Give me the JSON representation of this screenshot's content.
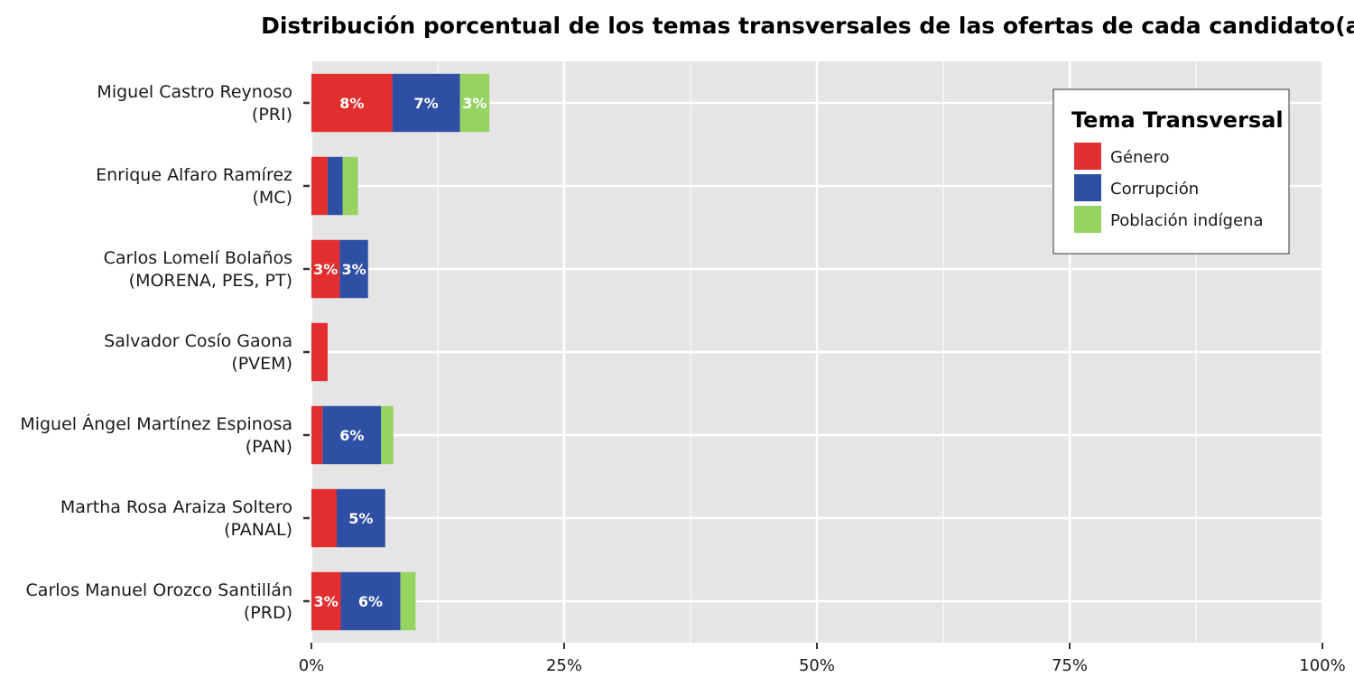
{
  "chart_data": {
    "type": "bar",
    "orientation": "horizontal",
    "stacked": true,
    "title": "Distribución porcentual de los temas transversales de las ofertas de cada candidato(a)",
    "xlabel": "",
    "ylabel": "",
    "xlim": [
      0,
      100
    ],
    "x_ticks": [
      0,
      25,
      50,
      75,
      100
    ],
    "x_tick_labels": [
      "0%",
      "25%",
      "50%",
      "75%",
      "100%"
    ],
    "grid": true,
    "legend_position": "top-right",
    "legend_title": "Tema Transversal",
    "categories": [
      {
        "name": "Miguel Castro Reynoso",
        "party": "(PRI)"
      },
      {
        "name": "Enrique Alfaro Ramírez",
        "party": "(MC)"
      },
      {
        "name": "Carlos Lomelí Bolaños",
        "party": "(MORENA, PES, PT)"
      },
      {
        "name": "Salvador Cosío Gaona",
        "party": "(PVEM)"
      },
      {
        "name": "Miguel Ángel Martínez Espinosa",
        "party": "(PAN)"
      },
      {
        "name": "Martha Rosa Araiza Soltero",
        "party": "(PANAL)"
      },
      {
        "name": "Carlos Manuel Orozco Santillán",
        "party": "(PRD)"
      }
    ],
    "series": [
      {
        "name": "Género",
        "color": "#e22e2e",
        "values": [
          8.0,
          1.6,
          2.8,
          1.6,
          1.1,
          2.5,
          2.9
        ],
        "labels": [
          "8%",
          "",
          "3%",
          "",
          "",
          "",
          "3%"
        ]
      },
      {
        "name": "Corrupción",
        "color": "#2e4fa3",
        "values": [
          6.7,
          1.5,
          2.8,
          0,
          5.8,
          4.8,
          5.9
        ],
        "labels": [
          "7%",
          "",
          "3%",
          "",
          "6%",
          "5%",
          "6%"
        ]
      },
      {
        "name": "Población indígena",
        "color": "#96d462",
        "values": [
          2.9,
          1.5,
          0,
          0,
          1.2,
          0,
          1.5
        ],
        "labels": [
          "3%",
          "",
          "",
          "",
          "",
          "",
          ""
        ]
      }
    ]
  }
}
